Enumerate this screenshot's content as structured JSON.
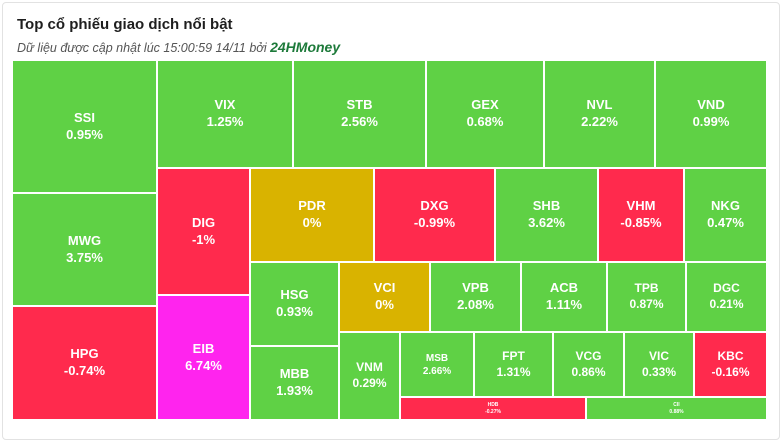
{
  "header": {
    "title": "Top cổ phiếu giao dịch nổi bật",
    "subtitle_prefix": "Dữ liệu được cập nhật lúc 15:00:59 14/11 bởi ",
    "brand": "24HMoney"
  },
  "colors": {
    "up": "#5fd145",
    "down": "#ff2a4d",
    "reference": "#d9b300",
    "ceiling": "#ff24ee"
  },
  "stocks": [
    {
      "symbol": "SSI",
      "change": "0.95%"
    },
    {
      "symbol": "VIX",
      "change": "1.25%"
    },
    {
      "symbol": "STB",
      "change": "2.56%"
    },
    {
      "symbol": "GEX",
      "change": "0.68%"
    },
    {
      "symbol": "NVL",
      "change": "2.22%"
    },
    {
      "symbol": "VND",
      "change": "0.99%"
    },
    {
      "symbol": "MWG",
      "change": "3.75%"
    },
    {
      "symbol": "DIG",
      "change": "-1%"
    },
    {
      "symbol": "PDR",
      "change": "0%"
    },
    {
      "symbol": "DXG",
      "change": "-0.99%"
    },
    {
      "symbol": "SHB",
      "change": "3.62%"
    },
    {
      "symbol": "VHM",
      "change": "-0.85%"
    },
    {
      "symbol": "NKG",
      "change": "0.47%"
    },
    {
      "symbol": "HPG",
      "change": "-0.74%"
    },
    {
      "symbol": "EIB",
      "change": "6.74%"
    },
    {
      "symbol": "HSG",
      "change": "0.93%"
    },
    {
      "symbol": "VCI",
      "change": "0%"
    },
    {
      "symbol": "VPB",
      "change": "2.08%"
    },
    {
      "symbol": "ACB",
      "change": "1.11%"
    },
    {
      "symbol": "TPB",
      "change": "0.87%"
    },
    {
      "symbol": "DGC",
      "change": "0.21%"
    },
    {
      "symbol": "MBB",
      "change": "1.93%"
    },
    {
      "symbol": "VNM",
      "change": "0.29%"
    },
    {
      "symbol": "MSB",
      "change": "2.66%"
    },
    {
      "symbol": "FPT",
      "change": "1.31%"
    },
    {
      "symbol": "VCG",
      "change": "0.86%"
    },
    {
      "symbol": "VIC",
      "change": "0.33%"
    },
    {
      "symbol": "KBC",
      "change": "-0.16%"
    },
    {
      "symbol": "HDB",
      "change": "-0.27%"
    },
    {
      "symbol": "CII",
      "change": "0.88%"
    }
  ]
}
